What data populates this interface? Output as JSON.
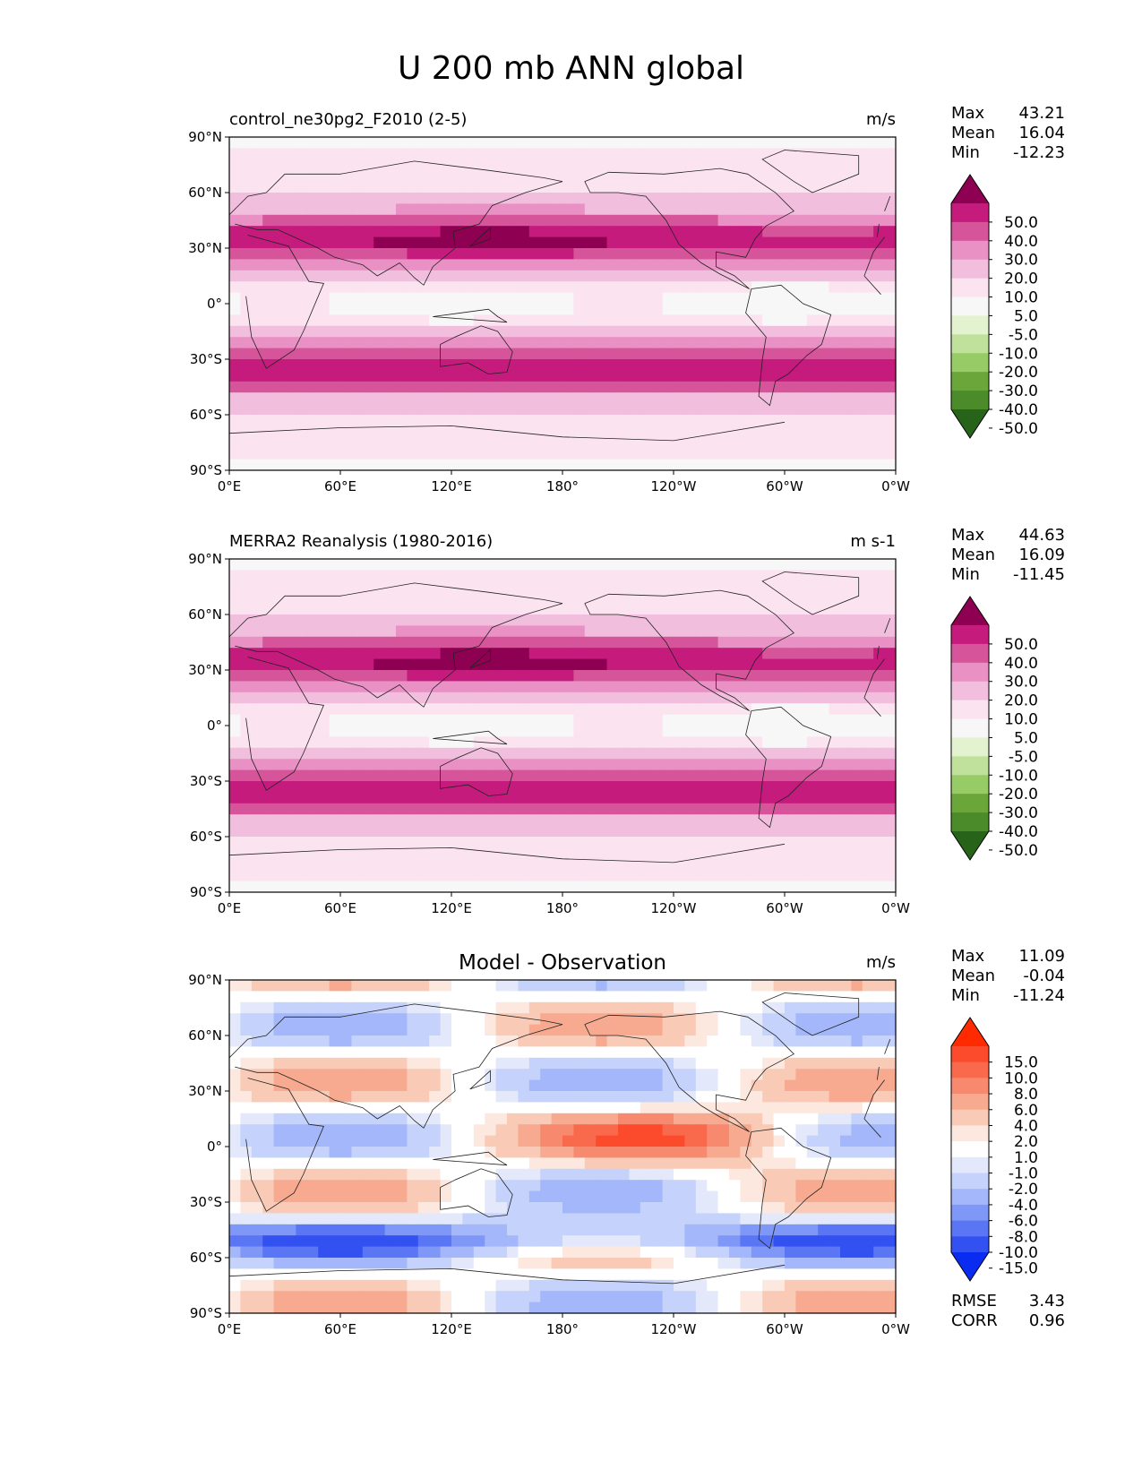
{
  "figure": {
    "title": "U 200 mb ANN global"
  },
  "axes": {
    "lat_labels": [
      "90°N",
      "60°N",
      "30°N",
      "0°",
      "30°S",
      "60°S",
      "90°S"
    ],
    "lon_labels": [
      "0°E",
      "60°E",
      "120°E",
      "180°",
      "120°W",
      "60°W",
      "0°W"
    ]
  },
  "chart_data": [
    {
      "type": "heatmap",
      "name": "test",
      "title_left": "control_ne30pg2_F2010 (2-5)",
      "title_center": "",
      "units": "m/s",
      "stats": [
        {
          "label": "Max",
          "value": "43.21"
        },
        {
          "label": "Mean",
          "value": "16.04"
        },
        {
          "label": "Min",
          "value": "-12.23"
        }
      ],
      "colorbar_levels": [
        "50.0",
        "40.0",
        "30.0",
        "20.0",
        "10.0",
        "5.0",
        "-5.0",
        "-10.0",
        "-20.0",
        "-30.0",
        "-40.0",
        "-50.0"
      ],
      "colorbar_colors": [
        "#8e0152",
        "#c51b7d",
        "#d6549a",
        "#e991c4",
        "#f1bfdd",
        "#fbe3f0",
        "#f7f7f7",
        "#e3f2cf",
        "#bfe19c",
        "#97cb65",
        "#6aa63a",
        "#4b8b2a",
        "#276419"
      ],
      "metrics": []
    },
    {
      "type": "heatmap",
      "name": "reference",
      "title_left": "MERRA2 Reanalysis (1980-2016)",
      "title_center": "",
      "units": "m s-1",
      "stats": [
        {
          "label": "Max",
          "value": "44.63"
        },
        {
          "label": "Mean",
          "value": "16.09"
        },
        {
          "label": "Min",
          "value": "-11.45"
        }
      ],
      "colorbar_levels": [
        "50.0",
        "40.0",
        "30.0",
        "20.0",
        "10.0",
        "5.0",
        "-5.0",
        "-10.0",
        "-20.0",
        "-30.0",
        "-40.0",
        "-50.0"
      ],
      "colorbar_colors": [
        "#8e0152",
        "#c51b7d",
        "#d6549a",
        "#e991c4",
        "#f1bfdd",
        "#fbe3f0",
        "#f7f7f7",
        "#e3f2cf",
        "#bfe19c",
        "#97cb65",
        "#6aa63a",
        "#4b8b2a",
        "#276419"
      ],
      "metrics": []
    },
    {
      "type": "heatmap",
      "name": "difference",
      "title_left": "",
      "title_center": "Model - Observation",
      "units": "m/s",
      "stats": [
        {
          "label": "Max",
          "value": "11.09"
        },
        {
          "label": "Mean",
          "value": "-0.04"
        },
        {
          "label": "Min",
          "value": "-11.24"
        }
      ],
      "colorbar_levels": [
        "15.0",
        "10.0",
        "8.0",
        "6.0",
        "4.0",
        "2.0",
        "1.0",
        "-1.0",
        "-2.0",
        "-4.0",
        "-6.0",
        "-8.0",
        "-10.0",
        "-15.0"
      ],
      "colorbar_colors": [
        "#ff2a00",
        "#fc4a2c",
        "#f96a4d",
        "#f78a6e",
        "#f7aa90",
        "#f9cbb6",
        "#fde8df",
        "#ffffff",
        "#e3e9fb",
        "#c5d2fb",
        "#a3b7fa",
        "#7f98f7",
        "#5b76f4",
        "#3350f1",
        "#0a2cf0"
      ],
      "metrics": [
        {
          "label": "RMSE",
          "value": "3.43"
        },
        {
          "label": "CORR",
          "value": "0.96"
        }
      ]
    }
  ]
}
